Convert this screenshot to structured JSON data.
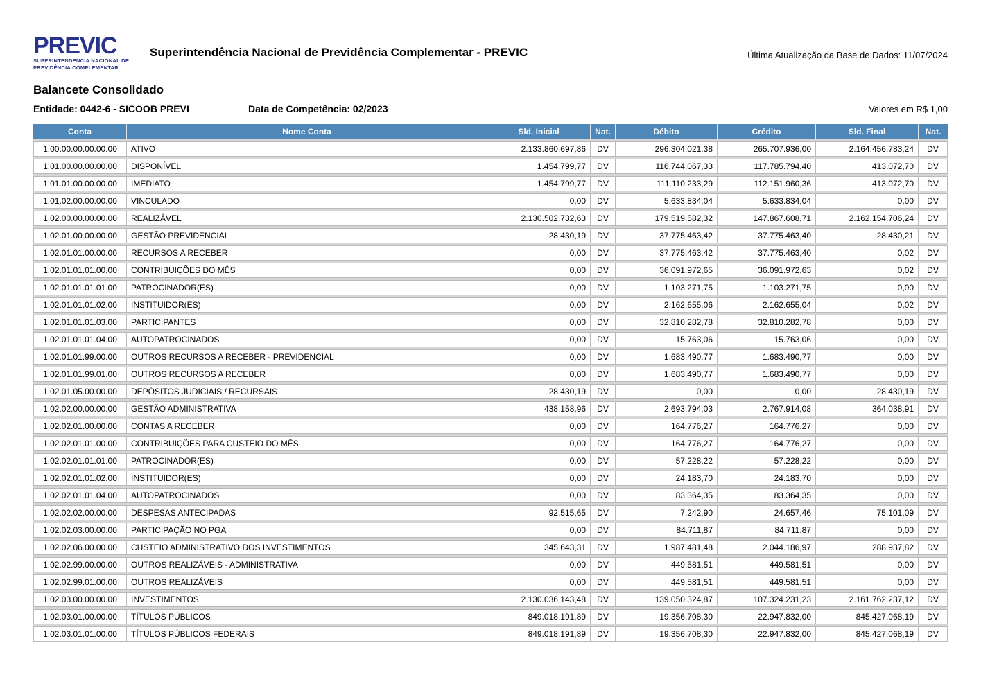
{
  "header": {
    "brand": "PREVIC",
    "brand_subtitle_line1": "SUPERINTENDENCIA NACIONAL DE",
    "brand_subtitle_line2": "PREVIDÊNCIA COMPLEMENTAR",
    "title": "Superintendência Nacional de Previdência Complementar - PREVIC",
    "last_update": "Última Atualização da Base de Dados: 11/07/2024"
  },
  "report": {
    "title": "Balancete Consolidado",
    "entity": "Entidade: 0442-6 - SICOOB PREVI",
    "competence": "Data de Competência: 02/2023",
    "values_note": "Valores em R$ 1,00"
  },
  "colors": {
    "table_header_bg": "#4F87B8",
    "logo_blue": "#283389",
    "row_border": "#b9b9b9",
    "row_gap": "#d6d6d6"
  },
  "table": {
    "columns": [
      "Conta",
      "Nome Conta",
      "Sld. Inicial",
      "Nat.",
      "Débito",
      "Crédito",
      "Sld. Final",
      "Nat."
    ],
    "rows": [
      [
        "1.00.00.00.00.00.00",
        "ATIVO",
        "2.133.860.697,86",
        "DV",
        "296.304.021,38",
        "265.707.936,00",
        "2.164.456.783,24",
        "DV"
      ],
      [
        "1.01.00.00.00.00.00",
        "DISPONÍVEL",
        "1.454.799,77",
        "DV",
        "116.744.067,33",
        "117.785.794,40",
        "413.072,70",
        "DV"
      ],
      [
        "1.01.01.00.00.00.00",
        "IMEDIATO",
        "1.454.799,77",
        "DV",
        "111.110.233,29",
        "112.151.960,36",
        "413.072,70",
        "DV"
      ],
      [
        "1.01.02.00.00.00.00",
        "VINCULADO",
        "0,00",
        "DV",
        "5.633.834,04",
        "5.633.834,04",
        "0,00",
        "DV"
      ],
      [
        "1.02.00.00.00.00.00",
        "REALIZÁVEL",
        "2.130.502.732,63",
        "DV",
        "179.519.582,32",
        "147.867.608,71",
        "2.162.154.706,24",
        "DV"
      ],
      [
        "1.02.01.00.00.00.00",
        "GESTÃO PREVIDENCIAL",
        "28.430,19",
        "DV",
        "37.775.463,42",
        "37.775.463,40",
        "28.430,21",
        "DV"
      ],
      [
        "1.02.01.01.00.00.00",
        "RECURSOS A RECEBER",
        "0,00",
        "DV",
        "37.775.463,42",
        "37.775.463,40",
        "0,02",
        "DV"
      ],
      [
        "1.02.01.01.01.00.00",
        "CONTRIBUIÇÕES DO MÊS",
        "0,00",
        "DV",
        "36.091.972,65",
        "36.091.972,63",
        "0,02",
        "DV"
      ],
      [
        "1.02.01.01.01.01.00",
        "PATROCINADOR(ES)",
        "0,00",
        "DV",
        "1.103.271,75",
        "1.103.271,75",
        "0,00",
        "DV"
      ],
      [
        "1.02.01.01.01.02.00",
        "INSTITUIDOR(ES)",
        "0,00",
        "DV",
        "2.162.655,06",
        "2.162.655,04",
        "0,02",
        "DV"
      ],
      [
        "1.02.01.01.01.03.00",
        "PARTICIPANTES",
        "0,00",
        "DV",
        "32.810.282,78",
        "32.810.282,78",
        "0,00",
        "DV"
      ],
      [
        "1.02.01.01.01.04.00",
        "AUTOPATROCINADOS",
        "0,00",
        "DV",
        "15.763,06",
        "15.763,06",
        "0,00",
        "DV"
      ],
      [
        "1.02.01.01.99.00.00",
        "OUTROS RECURSOS A RECEBER - PREVIDENCIAL",
        "0,00",
        "DV",
        "1.683.490,77",
        "1.683.490,77",
        "0,00",
        "DV"
      ],
      [
        "1.02.01.01.99.01.00",
        "OUTROS RECURSOS A RECEBER",
        "0,00",
        "DV",
        "1.683.490,77",
        "1.683.490,77",
        "0,00",
        "DV"
      ],
      [
        "1.02.01.05.00.00.00",
        "DEPÓSITOS JUDICIAIS / RECURSAIS",
        "28.430,19",
        "DV",
        "0,00",
        "0,00",
        "28.430,19",
        "DV"
      ],
      [
        "1.02.02.00.00.00.00",
        "GESTÃO ADMINISTRATIVA",
        "438.158,96",
        "DV",
        "2.693.794,03",
        "2.767.914,08",
        "364.038,91",
        "DV"
      ],
      [
        "1.02.02.01.00.00.00",
        "CONTAS A RECEBER",
        "0,00",
        "DV",
        "164.776,27",
        "164.776,27",
        "0,00",
        "DV"
      ],
      [
        "1.02.02.01.01.00.00",
        "CONTRIBUIÇÕES PARA CUSTEIO DO MÊS",
        "0,00",
        "DV",
        "164.776,27",
        "164.776,27",
        "0,00",
        "DV"
      ],
      [
        "1.02.02.01.01.01.00",
        "PATROCINADOR(ES)",
        "0,00",
        "DV",
        "57.228,22",
        "57.228,22",
        "0,00",
        "DV"
      ],
      [
        "1.02.02.01.01.02.00",
        "INSTITUIDOR(ES)",
        "0,00",
        "DV",
        "24.183,70",
        "24.183,70",
        "0,00",
        "DV"
      ],
      [
        "1.02.02.01.01.04.00",
        "AUTOPATROCINADOS",
        "0,00",
        "DV",
        "83.364,35",
        "83.364,35",
        "0,00",
        "DV"
      ],
      [
        "1.02.02.02.00.00.00",
        "DESPESAS ANTECIPADAS",
        "92.515,65",
        "DV",
        "7.242,90",
        "24.657,46",
        "75.101,09",
        "DV"
      ],
      [
        "1.02.02.03.00.00.00",
        "PARTICIPAÇÃO NO PGA",
        "0,00",
        "DV",
        "84.711,87",
        "84.711,87",
        "0,00",
        "DV"
      ],
      [
        "1.02.02.06.00.00.00",
        "CUSTEIO ADMINISTRATIVO DOS INVESTIMENTOS",
        "345.643,31",
        "DV",
        "1.987.481,48",
        "2.044.186,97",
        "288.937,82",
        "DV"
      ],
      [
        "1.02.02.99.00.00.00",
        "OUTROS REALIZÁVEIS - ADMINISTRATIVA",
        "0,00",
        "DV",
        "449.581,51",
        "449.581,51",
        "0,00",
        "DV"
      ],
      [
        "1.02.02.99.01.00.00",
        "OUTROS REALIZÁVEIS",
        "0,00",
        "DV",
        "449.581,51",
        "449.581,51",
        "0,00",
        "DV"
      ],
      [
        "1.02.03.00.00.00.00",
        "INVESTIMENTOS",
        "2.130.036.143,48",
        "DV",
        "139.050.324,87",
        "107.324.231,23",
        "2.161.762.237,12",
        "DV"
      ],
      [
        "1.02.03.01.00.00.00",
        "TÍTULOS PÚBLICOS",
        "849.018.191,89",
        "DV",
        "19.356.708,30",
        "22.947.832,00",
        "845.427.068,19",
        "DV"
      ],
      [
        "1.02.03.01.01.00.00",
        "TÍTULOS PÚBLICOS FEDERAIS",
        "849.018.191,89",
        "DV",
        "19.356.708,30",
        "22.947.832,00",
        "845.427.068,19",
        "DV"
      ]
    ]
  }
}
